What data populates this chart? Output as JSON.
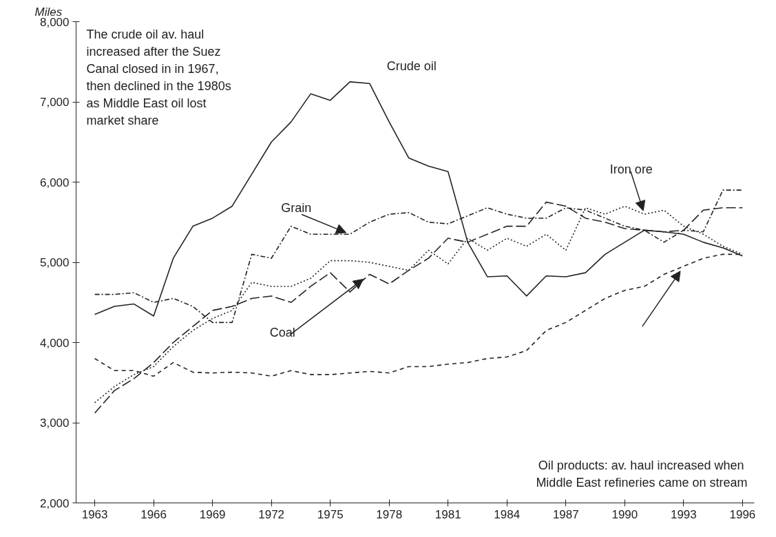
{
  "chart_data": {
    "type": "line",
    "ylabel": "Miles",
    "x": [
      1963,
      1964,
      1965,
      1966,
      1967,
      1968,
      1969,
      1970,
      1971,
      1972,
      1973,
      1974,
      1975,
      1976,
      1977,
      1978,
      1979,
      1980,
      1981,
      1982,
      1983,
      1984,
      1985,
      1986,
      1987,
      1988,
      1989,
      1990,
      1991,
      1992,
      1993,
      1994,
      1995,
      1996
    ],
    "series": [
      {
        "name": "Crude oil",
        "color": "#222222",
        "line_style": "solid",
        "values": [
          4350,
          4450,
          4480,
          4330,
          5050,
          5450,
          5550,
          5700,
          6100,
          6500,
          6750,
          7100,
          7020,
          7250,
          7230,
          6750,
          6300,
          6200,
          6130,
          5250,
          4820,
          4830,
          4580,
          4830,
          4820,
          4870,
          5100,
          5250,
          5400,
          5380,
          5350,
          5250,
          5180,
          5080
        ]
      },
      {
        "name": "Grain",
        "color": "#222222",
        "line_style": "dashdot",
        "values": [
          4600,
          4600,
          4620,
          4500,
          4550,
          4450,
          4250,
          4250,
          5100,
          5050,
          5450,
          5350,
          5350,
          5350,
          5500,
          5600,
          5620,
          5500,
          5480,
          5580,
          5680,
          5600,
          5550,
          5550,
          5680,
          5650,
          5550,
          5450,
          5400,
          5250,
          5400,
          5380,
          5900,
          5900
        ]
      },
      {
        "name": "Coal",
        "color": "#222222",
        "line_style": "longdash",
        "values": [
          3120,
          3400,
          3550,
          3750,
          4000,
          4200,
          4400,
          4450,
          4550,
          4580,
          4500,
          4700,
          4870,
          4630,
          4850,
          4730,
          4900,
          5050,
          5300,
          5250,
          5350,
          5450,
          5450,
          5750,
          5700,
          5550,
          5500,
          5420,
          5400,
          5380,
          5400,
          5650,
          5680,
          5680
        ]
      },
      {
        "name": "Iron ore",
        "color": "#222222",
        "line_style": "dotted",
        "values": [
          3250,
          3450,
          3600,
          3700,
          3950,
          4150,
          4300,
          4400,
          4750,
          4700,
          4700,
          4800,
          5020,
          5020,
          5000,
          4950,
          4900,
          5150,
          4980,
          5300,
          5150,
          5300,
          5200,
          5350,
          5150,
          5680,
          5600,
          5700,
          5600,
          5650,
          5450,
          5350,
          5200,
          5100
        ]
      },
      {
        "color": "#222222",
        "line_style": "dashed",
        "values": [
          3800,
          3650,
          3650,
          3580,
          3750,
          3630,
          3620,
          3630,
          3620,
          3580,
          3650,
          3600,
          3600,
          3620,
          3640,
          3620,
          3700,
          3700,
          3730,
          3750,
          3800,
          3820,
          3900,
          4150,
          4250,
          4400,
          4550,
          4650,
          4700,
          4850,
          4950,
          5050,
          5100,
          5100
        ]
      }
    ],
    "annotations": [
      "The crude oil av. haul increased after the Suez Canal closed in in 1967, then declined in the 1980s as Middle East oil lost market share",
      "Oil products:  av. haul increased when Middle East refineries came on stream"
    ],
    "xlim": [
      1962.05,
      1996.6
    ],
    "ylim": [
      2000,
      8000
    ],
    "xticks": [
      1963,
      1966,
      1969,
      1972,
      1975,
      1978,
      1981,
      1984,
      1987,
      1990,
      1993,
      1996
    ],
    "yticks": [
      {
        "value": 2000,
        "label": "2,000"
      },
      {
        "value": 3000,
        "label": "3,000"
      },
      {
        "value": 4000,
        "label": "4,000"
      },
      {
        "value": 5000,
        "label": "5,000"
      },
      {
        "value": 6000,
        "label": "6,000"
      },
      {
        "value": 7000,
        "label": "7,000"
      },
      {
        "value": 8000,
        "label": "8,000"
      }
    ],
    "grid": false,
    "marker": "none"
  }
}
